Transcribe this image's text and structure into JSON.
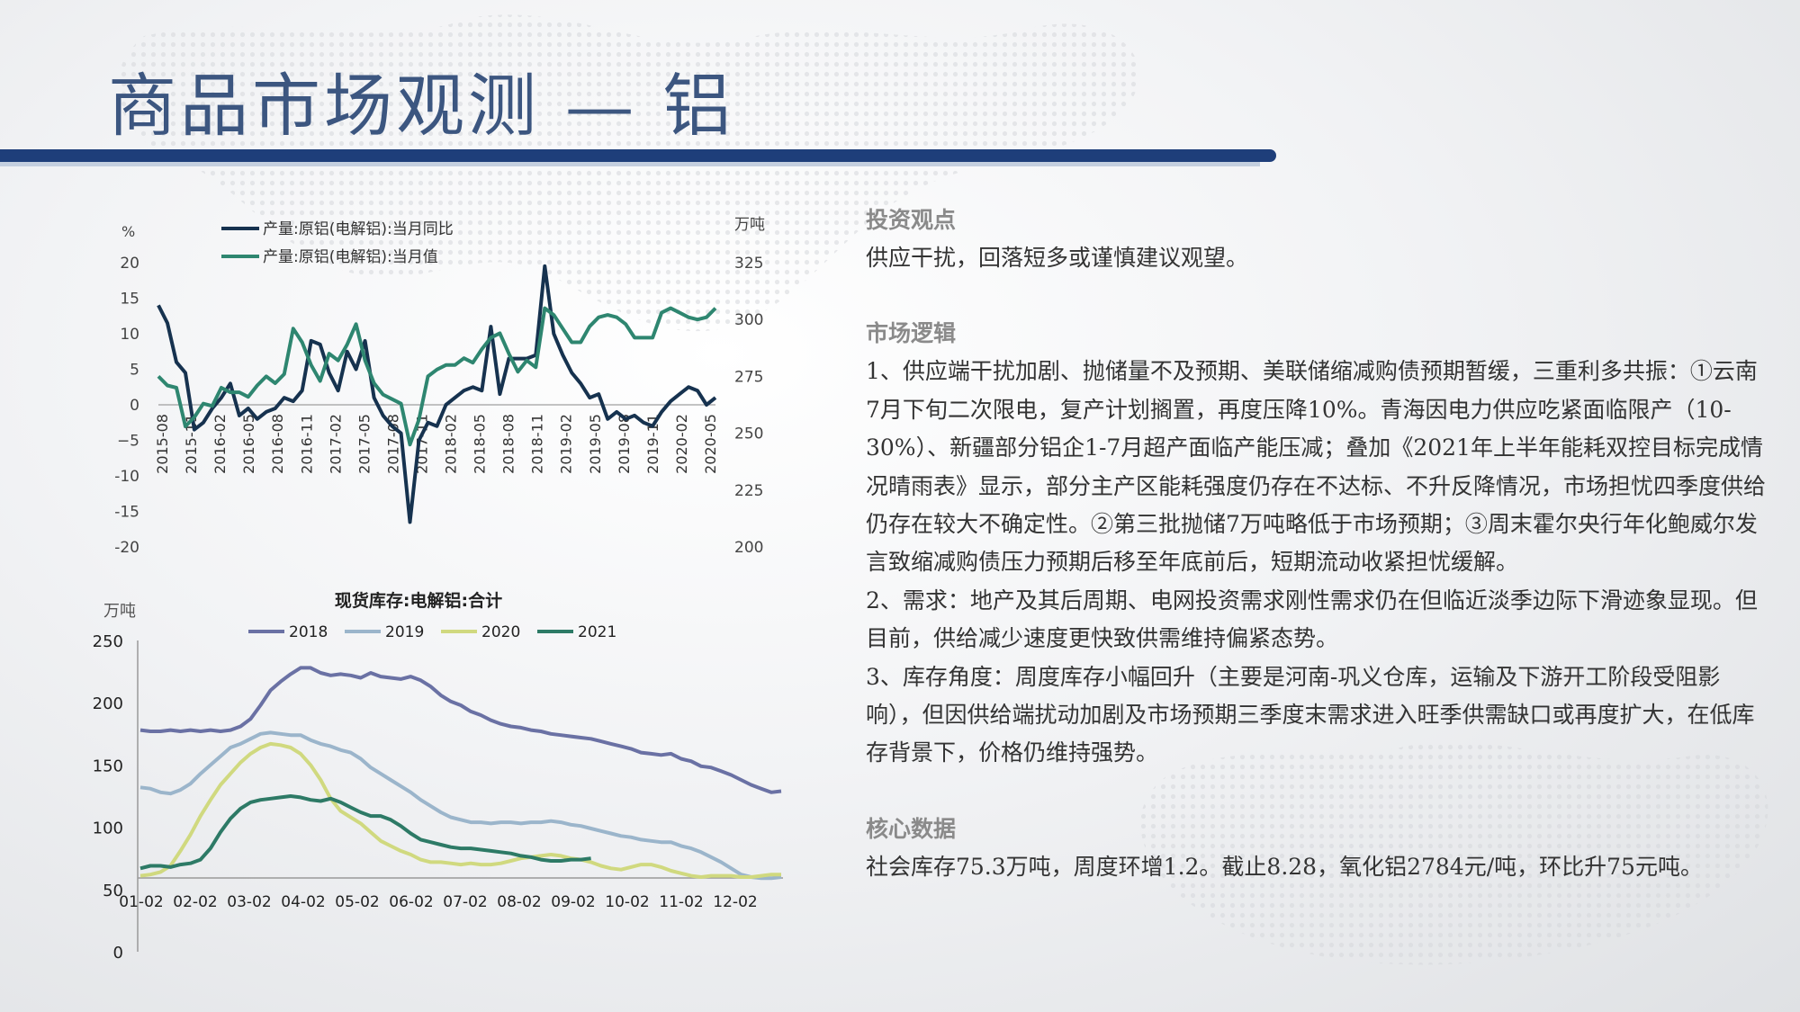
{
  "page": {
    "title": "商品市场观测 — 铝"
  },
  "text": {
    "sections": [
      {
        "heading": "投资观点",
        "paragraphs": [
          "供应干扰，回落短多或谨慎建议观望。"
        ]
      },
      {
        "heading": "市场逻辑",
        "paragraphs": [
          "1、供应端干扰加剧、抛储量不及预期、美联储缩减购债预期暂缓，三重利多共振：①云南7月下旬二次限电，复产计划搁置，再度压降10%。青海因电力供应吃紧面临限产（10-30%）、新疆部分铝企1-7月超产面临产能压减；叠加《2021年上半年能耗双控目标完成情况晴雨表》显示，部分主产区能耗强度仍存在不达标、不升反降情况，市场担忧四季度供给仍存在较大不确定性。②第三批抛储7万吨略低于市场预期；③周末霍尔央行年化鲍威尔发言致缩减购债压力预期后移至年底前后，短期流动收紧担忧缓解。",
          "2、需求：地产及其后周期、电网投资需求刚性需求仍在但临近淡季边际下滑迹象显现。但目前，供给减少速度更快致供需维持偏紧态势。",
          "3、库存角度：周度库存小幅回升（主要是河南-巩义仓库，运输及下游开工阶段受阻影响），但因供给端扰动加剧及市场预期三季度末需求进入旺季供需缺口或再度扩大，在低库存背景下，价格仍维持强势。"
        ]
      },
      {
        "heading": "核心数据",
        "paragraphs": [
          "社会库存75.3万吨，周度环增1.2。截止8.28，氧化铝2784元/吨，环比升75元吨。"
        ]
      }
    ]
  },
  "chart_data": [
    {
      "type": "line",
      "title": "",
      "y_left_unit": "%",
      "y_right_unit": "万吨",
      "y_left_ticks": [
        20,
        15,
        10,
        5,
        0,
        "−5",
        "-10",
        "-15",
        "-20"
      ],
      "y_right_ticks": [
        325,
        300,
        275,
        250,
        225,
        200
      ],
      "ylim_left": [
        -20,
        20
      ],
      "ylim_right": [
        200,
        325
      ],
      "x_tick_labels": [
        "2015-08",
        "2015-11",
        "2016-02",
        "2016-05",
        "2016-08",
        "2016-11",
        "2017-02",
        "2017-05",
        "2017-08",
        "2017-11",
        "2018-02",
        "2018-05",
        "2018-08",
        "2018-11",
        "2019-02",
        "2019-05",
        "2019-08",
        "2019-11",
        "2020-02",
        "2020-05"
      ],
      "series": [
        {
          "name": "产量:原铝(电解铝):当月同比",
          "axis": "left",
          "color": "#16324f",
          "values": [
            14,
            11.5,
            6,
            4.5,
            -3.5,
            -2.5,
            -0.5,
            1,
            3,
            -1.5,
            -0.5,
            -2,
            -1,
            -0.5,
            1,
            0.5,
            2,
            9,
            8.5,
            4.5,
            2,
            7.5,
            5,
            9,
            1,
            -1.5,
            -3,
            -4,
            -16.5,
            -5,
            -2.5,
            -3,
            0,
            1,
            2,
            2.5,
            2,
            11,
            1.5,
            6.5,
            6.5,
            6.5,
            7,
            19.5,
            10,
            7,
            4.5,
            3,
            1,
            1.5,
            -2,
            -1,
            -2,
            -1.5,
            -2.5,
            -3,
            -1,
            0.5,
            1.5,
            2.5,
            2,
            0,
            1
          ]
        },
        {
          "name": "产量:原铝(电解铝):当月值",
          "axis": "right",
          "color": "#2e8670",
          "values": [
            275,
            271,
            270,
            253,
            257,
            263,
            262,
            270,
            268,
            268,
            266,
            271,
            275,
            272,
            276,
            296,
            290,
            280,
            273,
            285,
            282,
            289,
            298,
            282,
            272,
            267,
            265,
            263,
            245,
            256,
            275,
            278,
            280,
            280,
            283,
            281,
            287,
            292,
            294,
            285,
            277,
            282,
            279,
            305,
            302,
            296,
            290,
            290,
            297,
            301,
            302,
            301,
            298,
            292,
            292,
            292,
            303,
            305,
            303,
            301,
            300,
            301,
            305
          ]
        }
      ]
    },
    {
      "type": "line",
      "title": "现货库存:电解铝:合计",
      "y_unit": "万吨",
      "y_ticks": [
        250,
        200,
        150,
        100,
        50,
        0
      ],
      "ylim": [
        0,
        250
      ],
      "x_tick_labels": [
        "01-02",
        "02-02",
        "03-02",
        "04-02",
        "05-02",
        "06-02",
        "07-02",
        "08-02",
        "09-02",
        "10-02",
        "11-02",
        "12-02"
      ],
      "series": [
        {
          "name": "2018",
          "color": "#6a71a4",
          "values": [
            178,
            177,
            177,
            178,
            177,
            178,
            177,
            178,
            177,
            178,
            181,
            187,
            198,
            210,
            217,
            223,
            228,
            228,
            224,
            222,
            223,
            222,
            220,
            224,
            221,
            220,
            219,
            221,
            218,
            213,
            206,
            201,
            198,
            193,
            190,
            186,
            183,
            181,
            180,
            178,
            177,
            175,
            174,
            173,
            172,
            171,
            169,
            167,
            165,
            163,
            160,
            159,
            158,
            159,
            155,
            153,
            149,
            148,
            145,
            142,
            138,
            134,
            131,
            128,
            129
          ]
        },
        {
          "name": "2019",
          "color": "#9bb5cb",
          "values": [
            132,
            131,
            128,
            127,
            130,
            135,
            143,
            150,
            157,
            164,
            167,
            171,
            175,
            176,
            175,
            174,
            174,
            170,
            167,
            165,
            162,
            160,
            155,
            148,
            143,
            138,
            133,
            128,
            122,
            117,
            112,
            108,
            106,
            104,
            104,
            103,
            104,
            104,
            103,
            104,
            104,
            105,
            104,
            102,
            101,
            99,
            97,
            95,
            93,
            92,
            90,
            89,
            88,
            88,
            85,
            83,
            80,
            76,
            72,
            67,
            62,
            60,
            59,
            59,
            60
          ]
        },
        {
          "name": "2020",
          "color": "#d0d97f",
          "values": [
            61,
            62,
            64,
            69,
            81,
            94,
            109,
            122,
            134,
            143,
            152,
            159,
            164,
            167,
            166,
            164,
            159,
            150,
            138,
            123,
            113,
            108,
            103,
            96,
            89,
            85,
            81,
            78,
            74,
            72,
            72,
            71,
            70,
            71,
            70,
            70,
            71,
            73,
            75,
            76,
            77,
            78,
            77,
            75,
            74,
            72,
            69,
            67,
            66,
            68,
            70,
            70,
            68,
            65,
            63,
            61,
            60,
            61,
            61,
            61,
            60,
            60,
            61,
            62,
            62
          ]
        },
        {
          "name": "2021",
          "color": "#2d7a66",
          "values": [
            67,
            69,
            69,
            68,
            70,
            71,
            74,
            83,
            96,
            107,
            115,
            120,
            122,
            123,
            124,
            125,
            124,
            122,
            121,
            123,
            120,
            116,
            112,
            109,
            109,
            106,
            101,
            95,
            90,
            88,
            86,
            84,
            83,
            83,
            82,
            81,
            80,
            79,
            77,
            76,
            74,
            73,
            73,
            74,
            74,
            75
          ]
        }
      ]
    }
  ]
}
